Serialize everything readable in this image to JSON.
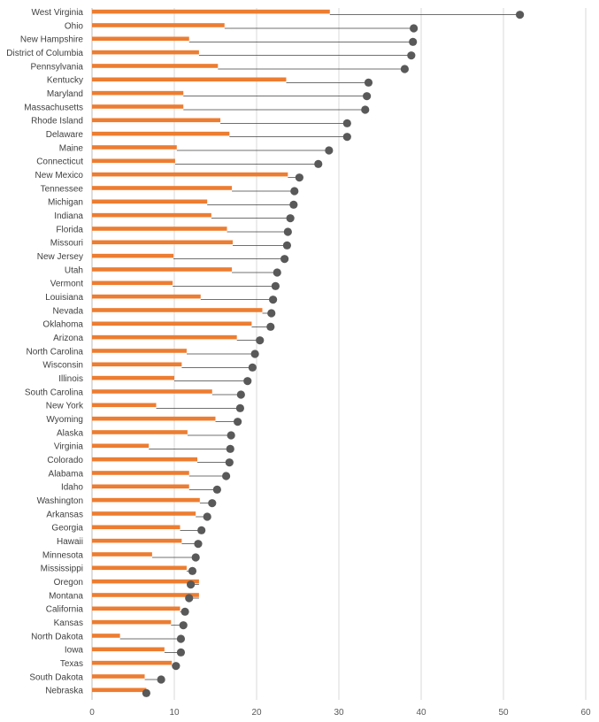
{
  "chart_data": {
    "type": "bar",
    "orientation": "horizontal",
    "xlim": [
      0,
      60
    ],
    "x_ticks": [
      "0",
      "10",
      "20",
      "30",
      "40",
      "50",
      "60"
    ],
    "grid": true,
    "legend": "none",
    "colors": {
      "bar": "#ed7d31",
      "dot": "#595959",
      "connector": "#404040",
      "grid": "#d9d9d9"
    },
    "categories": [
      "West Virginia",
      "Ohio",
      "New Hampshire",
      "District of Columbia",
      "Pennsylvania",
      "Kentucky",
      "Maryland",
      "Massachusetts",
      "Rhode Island",
      "Delaware",
      "Maine",
      "Connecticut",
      "New Mexico",
      "Tennessee",
      "Michigan",
      "Indiana",
      "Florida",
      "Missouri",
      "New Jersey",
      "Utah",
      "Vermont",
      "Louisiana",
      "Nevada",
      "Oklahoma",
      "Arizona",
      "North Carolina",
      "Wisconsin",
      "Illinois",
      "South Carolina",
      "New York",
      "Wyoming",
      "Alaska",
      "Virginia",
      "Colorado",
      "Alabama",
      "Idaho",
      "Washington",
      "Arkansas",
      "Georgia",
      "Hawaii",
      "Minnesota",
      "Mississippi",
      "Oregon",
      "Montana",
      "California",
      "Kansas",
      "North Dakota",
      "Iowa",
      "Texas",
      "South Dakota",
      "Nebraska"
    ],
    "series": [
      {
        "type": "bar",
        "values": [
          28.9,
          16.1,
          11.8,
          13.0,
          15.3,
          23.6,
          11.1,
          11.1,
          15.6,
          16.7,
          10.3,
          10.1,
          23.8,
          17.0,
          14.0,
          14.5,
          16.4,
          17.1,
          9.9,
          17.0,
          9.8,
          13.2,
          20.7,
          19.4,
          17.6,
          11.5,
          10.9,
          10.0,
          14.6,
          7.8,
          15.0,
          11.6,
          6.9,
          12.8,
          11.8,
          11.8,
          13.1,
          12.6,
          10.7,
          10.9,
          7.3,
          11.5,
          13.0,
          13.0,
          10.7,
          9.6,
          3.4,
          8.8,
          9.7,
          6.4,
          6.6
        ]
      },
      {
        "type": "scatter",
        "values": [
          52.0,
          39.1,
          39.0,
          38.8,
          38.0,
          33.6,
          33.4,
          33.2,
          31.0,
          31.0,
          28.8,
          27.5,
          25.2,
          24.6,
          24.5,
          24.1,
          23.8,
          23.7,
          23.4,
          22.5,
          22.3,
          22.0,
          21.8,
          21.7,
          20.4,
          19.8,
          19.5,
          18.9,
          18.1,
          18.0,
          17.7,
          16.9,
          16.8,
          16.7,
          16.3,
          15.2,
          14.6,
          14.0,
          13.3,
          12.9,
          12.6,
          12.2,
          12.0,
          11.8,
          11.3,
          11.1,
          10.8,
          10.8,
          10.2,
          8.4,
          6.6
        ]
      }
    ]
  }
}
